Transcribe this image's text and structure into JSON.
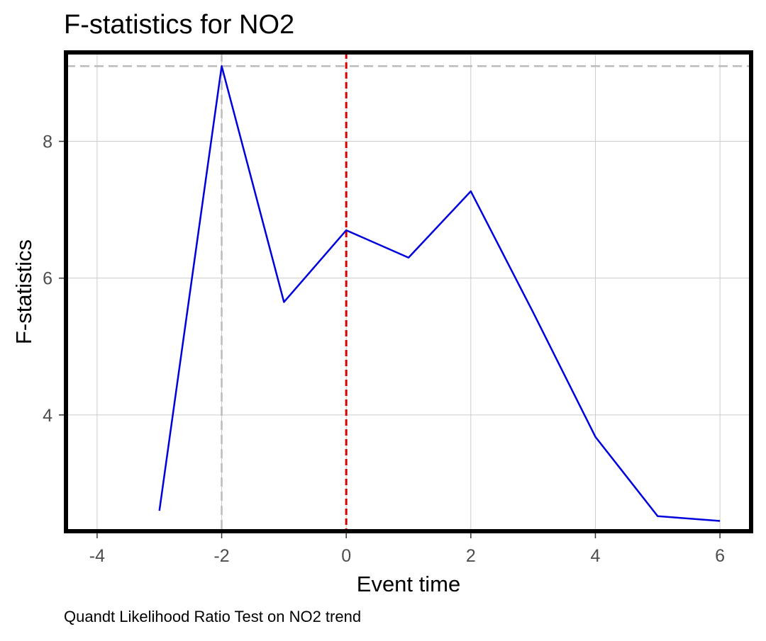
{
  "chart_data": {
    "type": "line",
    "title": "F-statistics for NO2",
    "xlabel": "Event time",
    "ylabel": "F-statistics",
    "caption": "Quandt Likelihood Ratio Test on NO2 trend",
    "xlim": [
      -4.5,
      6.5
    ],
    "ylim": [
      2.3,
      9.3
    ],
    "x_ticks": [
      -4,
      -2,
      0,
      2,
      4,
      6
    ],
    "y_ticks": [
      4,
      6,
      8
    ],
    "grid": true,
    "series": [
      {
        "color": "#0000dd",
        "x": [
          -3,
          -2,
          -1,
          0,
          1,
          2,
          3,
          4,
          5,
          6
        ],
        "y": [
          2.6,
          9.1,
          5.65,
          6.7,
          6.3,
          7.27,
          5.5,
          3.68,
          2.52,
          2.45
        ]
      }
    ],
    "reference_lines": [
      {
        "orientation": "vertical",
        "value": 0,
        "color": "#dd0000",
        "style": "dashed"
      },
      {
        "orientation": "vertical",
        "value": -2,
        "color": "#bbbbbb",
        "style": "dashed"
      },
      {
        "orientation": "horizontal",
        "value": 9.1,
        "color": "#bbbbbb",
        "style": "dashed"
      }
    ]
  }
}
